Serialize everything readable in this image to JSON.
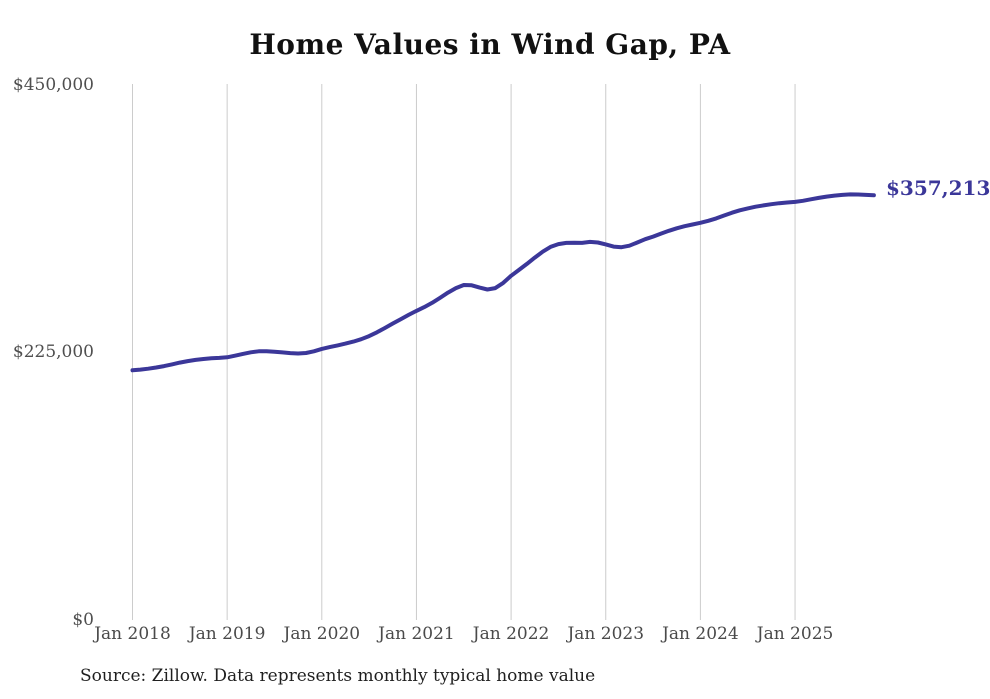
{
  "title": "Home Values in Wind Gap, PA",
  "end_label": "$357,213",
  "source_note": "Source: Zillow. Data represents monthly typical home value",
  "colors": {
    "line": "#3b3799",
    "grid": "#cccccc",
    "axis_text": "#4a4a4a",
    "title_text": "#111111",
    "end_label_text": "#3b3799"
  },
  "y_axis": {
    "ticks": [
      "$0",
      "$225,000",
      "$450,000"
    ],
    "min": 0,
    "max": 450000
  },
  "x_axis": {
    "ticks": [
      "Jan 2018",
      "Jan 2019",
      "Jan 2020",
      "Jan 2021",
      "Jan 2022",
      "Jan 2023",
      "Jan 2024",
      "Jan 2025"
    ]
  },
  "chart_data": {
    "type": "line",
    "title": "Home Values in Wind Gap, PA",
    "series_name": "Typical home value",
    "frequency": "monthly",
    "start_month": "Jan 2018",
    "end_month": "Nov 2025",
    "ylim": [
      0,
      450000
    ],
    "grid": "vertical-only",
    "legend_position": "none",
    "final_value": 357213,
    "values": [
      210000,
      210600,
      211400,
      212400,
      213600,
      215000,
      216500,
      217800,
      218800,
      219500,
      220100,
      220500,
      221000,
      222300,
      223800,
      225200,
      226000,
      226100,
      225700,
      225100,
      224500,
      224200,
      224600,
      226000,
      228000,
      229500,
      231000,
      232500,
      234200,
      236200,
      238800,
      242000,
      245600,
      249400,
      253000,
      256600,
      260000,
      263200,
      266800,
      271000,
      275400,
      279200,
      281800,
      281500,
      279600,
      278000,
      279200,
      283500,
      289500,
      294500,
      299500,
      304800,
      309800,
      313800,
      316200,
      317200,
      317300,
      317200,
      318000,
      317500,
      315900,
      314100,
      313600,
      314800,
      317500,
      320300,
      322500,
      325000,
      327400,
      329500,
      331200,
      332700,
      334100,
      335800,
      337800,
      340200,
      342600,
      344600,
      346200,
      347600,
      348700,
      349700,
      350600,
      351200,
      351700,
      352600,
      353900,
      355000,
      356100,
      357000,
      357600,
      358000,
      357900,
      357600,
      357213
    ]
  }
}
